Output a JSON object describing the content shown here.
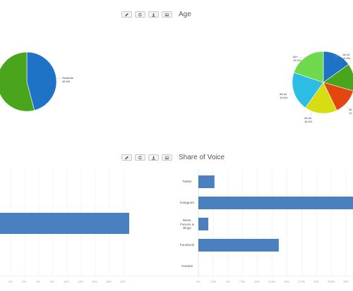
{
  "panels": {
    "age": {
      "title": "Age"
    },
    "share_of_voice": {
      "title": "Share of Voice"
    }
  },
  "toolbar_icons": [
    "pencil-icon",
    "refresh-icon",
    "download-icon",
    "image-icon"
  ],
  "colors": {
    "bar": "#4a80bf",
    "grid": "#ececec",
    "toolbar_border": "#c8c8c8"
  },
  "chart_data": [
    {
      "type": "pie",
      "slices": [
        {
          "label": "Students",
          "value_label": "45.9%",
          "value": 45.9,
          "color": "#1f73c6"
        },
        {
          "value": 54.1,
          "color": "#4aa51c"
        }
      ]
    },
    {
      "type": "pie",
      "title": "Age",
      "slices": [
        {
          "label": "18-24",
          "value_label": "14.6%",
          "value": 14.6,
          "color": "#1f73c6"
        },
        {
          "value": 13.8,
          "color": "#4aa51c"
        },
        {
          "label": "35",
          "value_label": "13",
          "value": 13.0,
          "color": "#e5460f"
        },
        {
          "label": "45-54",
          "value_label": "16.4%",
          "value": 16.4,
          "color": "#d6dd12"
        },
        {
          "label": "55-64",
          "value_label": "19.6%",
          "value": 19.6,
          "color": "#2bbde3"
        },
        {
          "label": "65+",
          "value_label": "19.2%",
          "value": 19.2,
          "color": "#6fd94e"
        }
      ]
    },
    {
      "type": "bar",
      "orientation": "horizontal",
      "values": [
        21
      ],
      "ticks": [
        "0%",
        "3%",
        "5%",
        "8%",
        "10%",
        "13%",
        "15%",
        "18%",
        "20%"
      ]
    },
    {
      "type": "bar",
      "orientation": "horizontal",
      "title": "Share of Voice",
      "categories": [
        "Twitter",
        "Instagram",
        "News, Forums & Blogs",
        "Facebook",
        "Youtube"
      ],
      "category_lines": [
        [
          "Twitter"
        ],
        [
          "Instagram"
        ],
        [
          "News,",
          "Forums &",
          "Blogs"
        ],
        [
          "Facebook"
        ],
        [
          "Youtube"
        ]
      ],
      "values": [
        2.6,
        25.0,
        1.6,
        13.0,
        0
      ],
      "ticks": [
        "0%",
        "2.5%",
        "5%",
        "7.5%",
        "10%",
        "12.5%",
        "15%",
        "17.5%",
        "20%",
        "22.5%",
        "25%"
      ],
      "xlim": [
        0,
        25
      ]
    }
  ]
}
